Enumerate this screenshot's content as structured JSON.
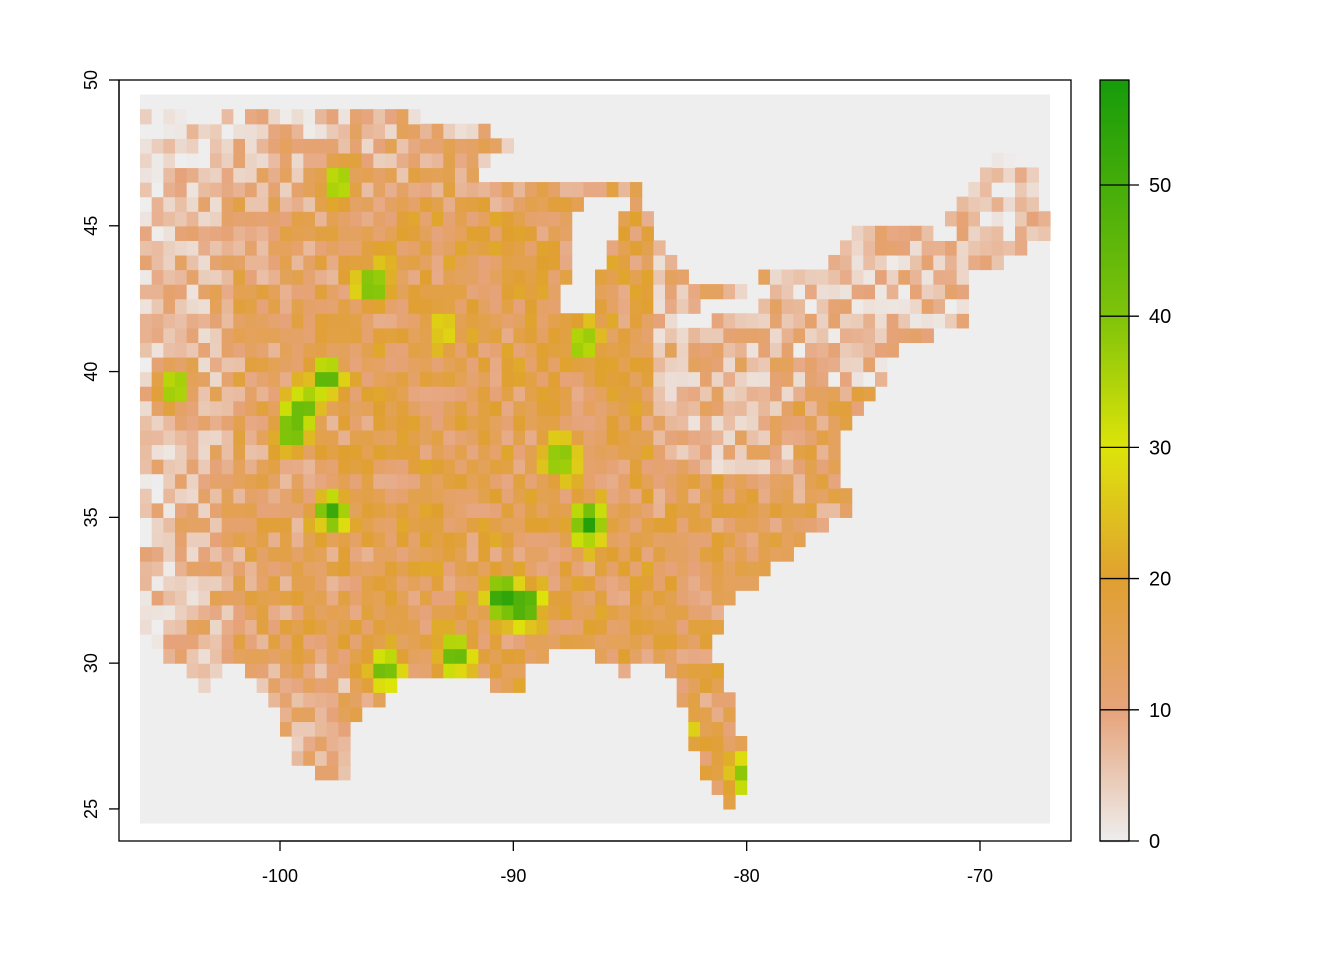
{
  "chart_data": {
    "type": "heatmap",
    "title": "",
    "xlabel": "",
    "ylabel": "",
    "xlim": [
      -106.9,
      -66.1
    ],
    "ylim": [
      23.9,
      50.0
    ],
    "raster_extent": {
      "xmin": -106.0,
      "xmax": -67.0,
      "ymin": 24.5,
      "ymax": 49.5
    },
    "cell_size": 0.5,
    "x_ticks": [
      -100,
      -90,
      -80,
      -70
    ],
    "x_tick_labels": [
      "-100",
      "-90",
      "-80",
      "-70"
    ],
    "y_ticks": [
      25,
      30,
      35,
      40,
      45,
      50
    ],
    "y_tick_labels": [
      "25",
      "30",
      "35",
      "40",
      "45",
      "50"
    ],
    "value_range": [
      0,
      58
    ],
    "legend": {
      "position": "right",
      "ticks": [
        0,
        10,
        20,
        30,
        40,
        50
      ],
      "tick_labels": [
        "0",
        "10",
        "20",
        "30",
        "40",
        "50"
      ],
      "colors": [
        "#eeeeee",
        "#e6a37a",
        "#e0a030",
        "#dde40a",
        "#7fc30a",
        "#169b0a"
      ],
      "stops": [
        0,
        10,
        20,
        30,
        40,
        58
      ]
    },
    "background_color": "#eeeeee",
    "hotspots": [
      {
        "lon": -97.5,
        "lat": 46.5,
        "value": 42
      },
      {
        "lon": -96.0,
        "lat": 43.0,
        "value": 47
      },
      {
        "lon": -93.0,
        "lat": 41.5,
        "value": 30
      },
      {
        "lon": -87.0,
        "lat": 41.0,
        "value": 42
      },
      {
        "lon": -104.5,
        "lat": 39.5,
        "value": 45
      },
      {
        "lon": -98.0,
        "lat": 39.8,
        "value": 50
      },
      {
        "lon": -99.5,
        "lat": 38.0,
        "value": 48
      },
      {
        "lon": -99.0,
        "lat": 38.8,
        "value": 46
      },
      {
        "lon": -88.0,
        "lat": 37.0,
        "value": 44
      },
      {
        "lon": -97.8,
        "lat": 35.2,
        "value": 52
      },
      {
        "lon": -86.8,
        "lat": 34.8,
        "value": 56
      },
      {
        "lon": -90.5,
        "lat": 32.3,
        "value": 58
      },
      {
        "lon": -89.5,
        "lat": 32.0,
        "value": 55
      },
      {
        "lon": -92.5,
        "lat": 30.3,
        "value": 48
      },
      {
        "lon": -95.5,
        "lat": 29.8,
        "value": 46
      },
      {
        "lon": -80.0,
        "lat": 26.2,
        "value": 42
      },
      {
        "lon": -82.8,
        "lat": 27.8,
        "value": 34
      }
    ]
  }
}
